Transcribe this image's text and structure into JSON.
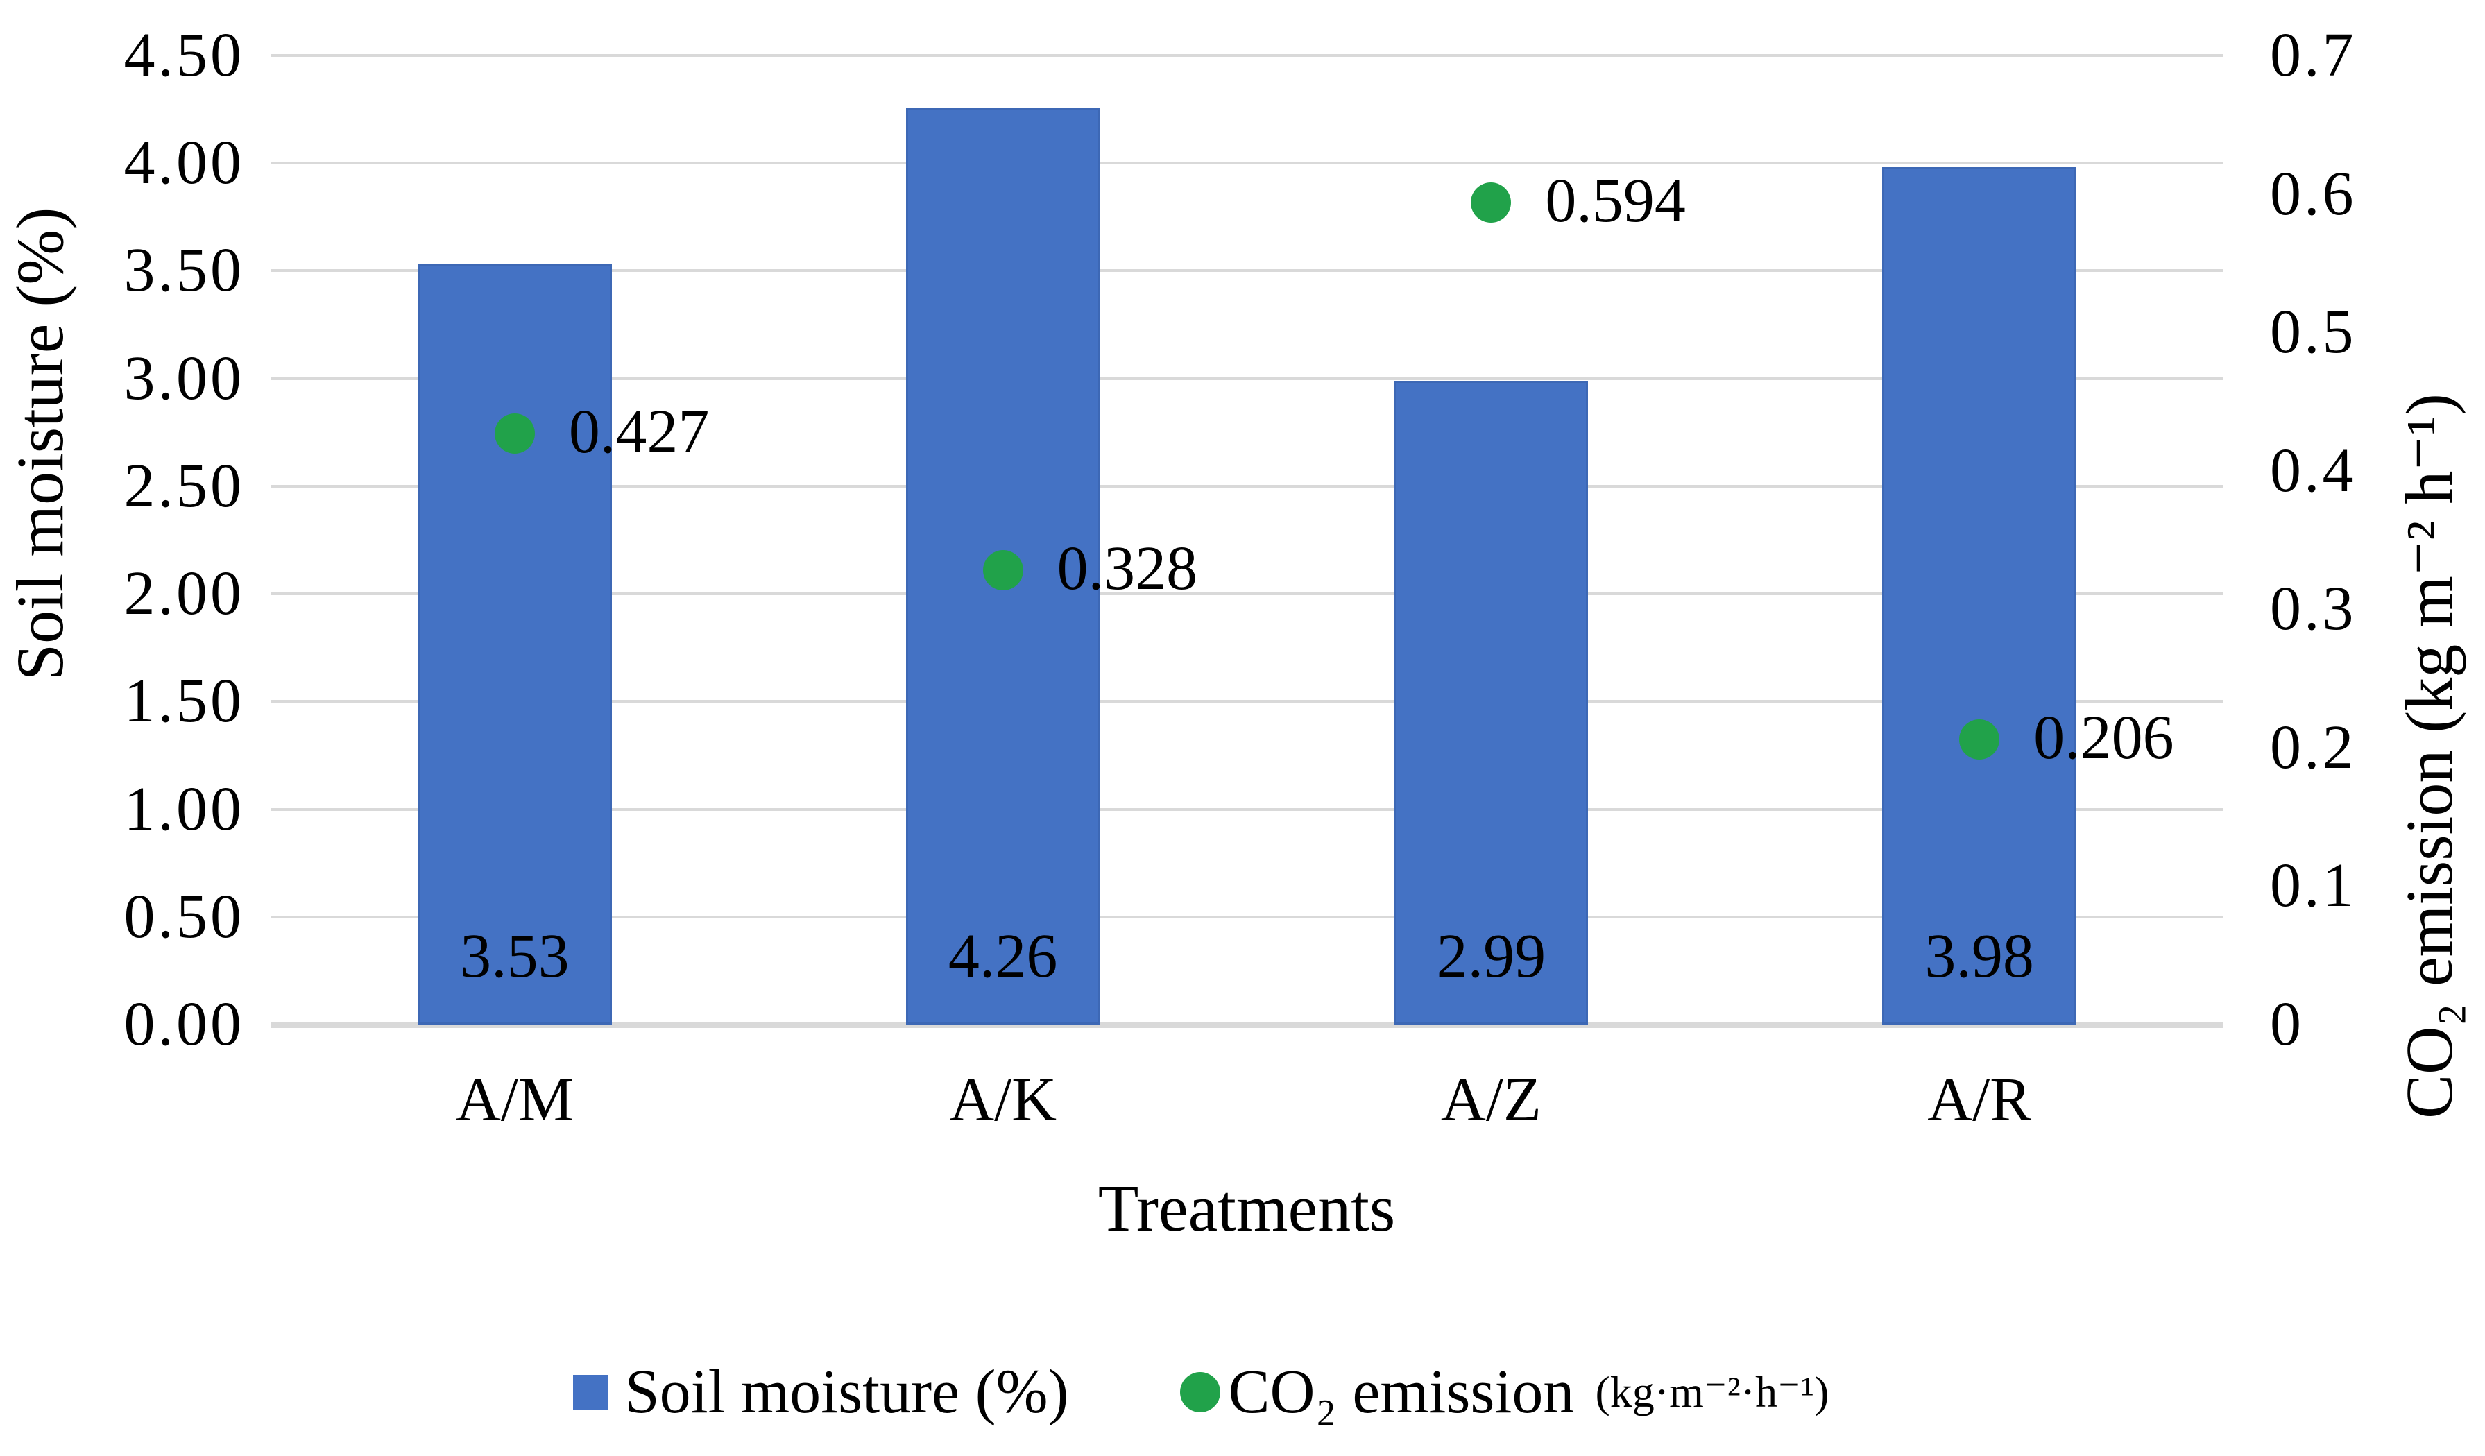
{
  "chart_data": {
    "type": "combo",
    "chart_types": [
      "bar",
      "scatter"
    ],
    "categories": [
      "A/M",
      "A/K",
      "A/Z",
      "A/R"
    ],
    "series": [
      {
        "name": "Soil moisture (%)",
        "chart_type": "bar",
        "axis": "left",
        "color": "#4472C4",
        "values": [
          3.53,
          4.26,
          2.99,
          3.98
        ],
        "data_labels": [
          "3.53",
          "4.26",
          "2.99",
          "3.98"
        ]
      },
      {
        "name": "CO₂ emission",
        "chart_type": "scatter",
        "axis": "right",
        "color": "#21A24A",
        "values": [
          0.427,
          0.328,
          0.594,
          0.206
        ],
        "data_labels": [
          "0.427",
          "0.328",
          "0.594",
          "0.206"
        ]
      }
    ],
    "x_axis": {
      "title": "Treatments"
    },
    "left_axis": {
      "title": "Soil moisture (%)",
      "min": 0,
      "max": 4.5,
      "ticks": [
        {
          "value": 4.5,
          "label": "4.50"
        },
        {
          "value": 4.0,
          "label": "4.00"
        },
        {
          "value": 3.5,
          "label": "3.50"
        },
        {
          "value": 3.0,
          "label": "3.00"
        },
        {
          "value": 2.5,
          "label": "2.50"
        },
        {
          "value": 2.0,
          "label": "2.00"
        },
        {
          "value": 1.5,
          "label": "1.50"
        },
        {
          "value": 1.0,
          "label": "1.00"
        },
        {
          "value": 0.5,
          "label": "0.50"
        },
        {
          "value": 0.0,
          "label": "0.00"
        }
      ]
    },
    "right_axis": {
      "title": "CO₂ emission (kg m⁻² h⁻¹)",
      "min": 0,
      "max": 0.7,
      "ticks": [
        {
          "value": 0.7,
          "label": "0.7"
        },
        {
          "value": 0.6,
          "label": "0.6"
        },
        {
          "value": 0.5,
          "label": "0.5"
        },
        {
          "value": 0.4,
          "label": "0.4"
        },
        {
          "value": 0.3,
          "label": "0.3"
        },
        {
          "value": 0.2,
          "label": "0.2"
        },
        {
          "value": 0.1,
          "label": "0.1"
        },
        {
          "value": 0.0,
          "label": "0"
        }
      ]
    },
    "legend": {
      "position": "bottom",
      "items": [
        {
          "marker": "square",
          "color": "#4472C4",
          "label": "Soil moisture (%)"
        },
        {
          "marker": "circle",
          "color": "#21A24A",
          "label": "CO₂ emission",
          "unit": "(kg·m⁻²·h⁻¹)"
        }
      ]
    },
    "grid": {
      "show": true,
      "color": "#D9D9D9"
    },
    "background": "#FFFFFF"
  }
}
